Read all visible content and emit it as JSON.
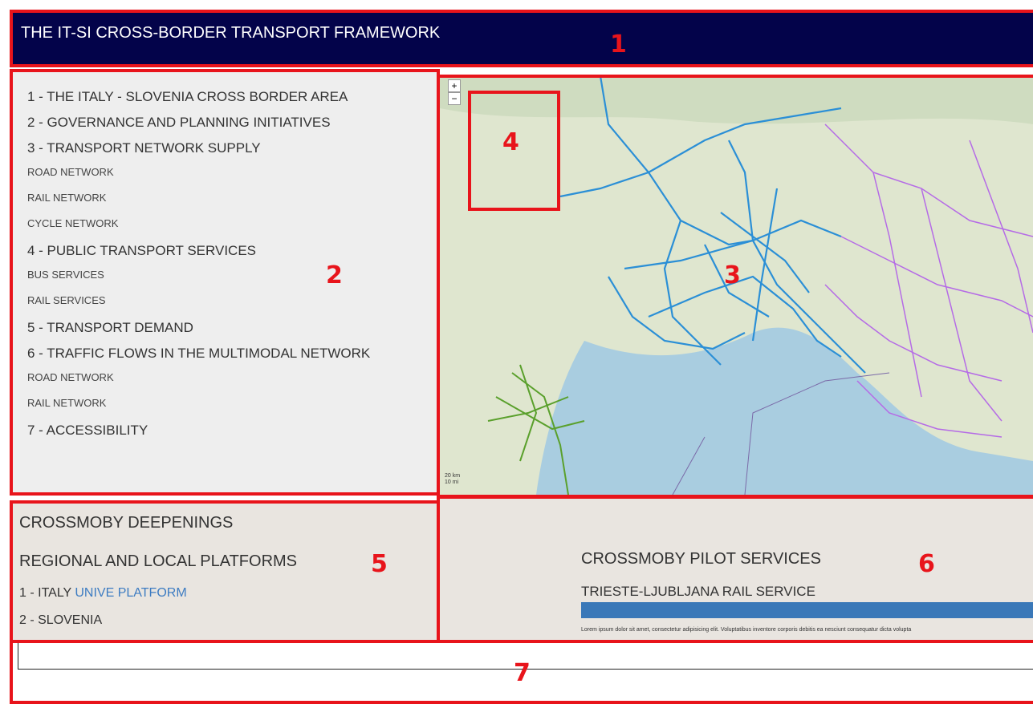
{
  "header": {
    "title": "THE IT-SI CROSS-BORDER TRANSPORT FRAMEWORK"
  },
  "menu": [
    {
      "label": "1 - THE ITALY - SLOVENIA CROSS BORDER AREA",
      "items": []
    },
    {
      "label": "2 - GOVERNANCE AND PLANNING INITIATIVES",
      "items": []
    },
    {
      "label": "3 - TRANSPORT NETWORK SUPPLY",
      "items": [
        "ROAD NETWORK",
        "RAIL NETWORK",
        "CYCLE NETWORK"
      ]
    },
    {
      "label": "4 - PUBLIC TRANSPORT SERVICES",
      "items": [
        "BUS SERVICES",
        "RAIL SERVICES"
      ]
    },
    {
      "label": "5 - TRANSPORT DEMAND",
      "items": []
    },
    {
      "label": "6 - TRAFFIC FLOWS IN THE MULTIMODAL NETWORK",
      "items": [
        "ROAD NETWORK",
        "RAIL NETWORK"
      ]
    },
    {
      "label": "7 - ACCESSIBILITY",
      "items": []
    }
  ],
  "map": {
    "zoom_in": "+",
    "zoom_out": "−",
    "scale": [
      "20 km",
      "10 mi"
    ]
  },
  "deepenings": {
    "title": "CROSSMOBY DEEPENINGS",
    "subtitle": "REGIONAL AND LOCAL PLATFORMS",
    "items": [
      {
        "text": "1 - ITALY",
        "link": "UNIVE PLATFORM"
      },
      {
        "text": "2 - SLOVENIA"
      }
    ]
  },
  "pilot": {
    "title": "CROSSMOBY PILOT SERVICES",
    "service": "TRIESTE-LJUBLJANA RAIL SERVICE",
    "description": "Lorem ipsum dolor sit amet, consectetur adipisicing elit. Voluptatibus inventore corporis debitis ea nesciunt consequatur dicta volupta"
  },
  "annotations": [
    "1",
    "2",
    "3",
    "4",
    "5",
    "6",
    "7"
  ]
}
